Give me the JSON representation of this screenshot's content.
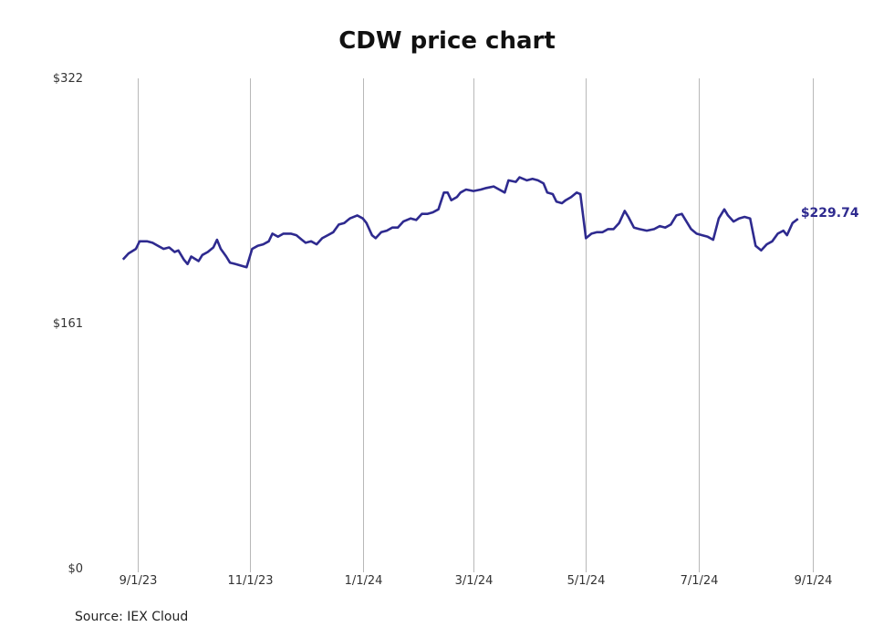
{
  "chart_data": {
    "type": "line",
    "title": "CDW price chart",
    "source": "Source: IEX Cloud",
    "ylim": [
      0,
      322
    ],
    "yticks": [
      "$322",
      "$161",
      "$0"
    ],
    "ytick_values": [
      322,
      161,
      0
    ],
    "xticks": [
      "9/1/23",
      "11/1/23",
      "1/1/24",
      "3/1/24",
      "5/1/24",
      "7/1/24",
      "9/1/24"
    ],
    "xtick_dates": [
      "2023-09-01",
      "2023-11-01",
      "2024-01-01",
      "2024-03-01",
      "2024-05-01",
      "2024-07-01",
      "2024-09-01"
    ],
    "grid": "vertical",
    "line_color": "#2e2a8f",
    "end_label": "$229.74",
    "series": [
      {
        "values": [
          [
            "2023-08-24",
            203
          ],
          [
            "2023-08-27",
            207
          ],
          [
            "2023-08-31",
            210
          ],
          [
            "2023-09-02",
            215
          ],
          [
            "2023-09-06",
            215
          ],
          [
            "2023-09-09",
            214
          ],
          [
            "2023-09-12",
            212
          ],
          [
            "2023-09-15",
            210
          ],
          [
            "2023-09-18",
            211
          ],
          [
            "2023-09-21",
            208
          ],
          [
            "2023-09-23",
            209
          ],
          [
            "2023-09-26",
            203
          ],
          [
            "2023-09-28",
            200
          ],
          [
            "2023-09-30",
            205
          ],
          [
            "2023-10-04",
            202
          ],
          [
            "2023-10-06",
            206
          ],
          [
            "2023-10-09",
            208
          ],
          [
            "2023-10-12",
            211
          ],
          [
            "2023-10-14",
            216
          ],
          [
            "2023-10-16",
            210
          ],
          [
            "2023-10-19",
            205
          ],
          [
            "2023-10-21",
            201
          ],
          [
            "2023-10-24",
            200
          ],
          [
            "2023-10-27",
            199
          ],
          [
            "2023-10-30",
            198
          ],
          [
            "2023-11-02",
            210
          ],
          [
            "2023-11-05",
            212
          ],
          [
            "2023-11-08",
            213
          ],
          [
            "2023-11-11",
            215
          ],
          [
            "2023-11-13",
            220
          ],
          [
            "2023-11-16",
            218
          ],
          [
            "2023-11-19",
            220
          ],
          [
            "2023-11-23",
            220
          ],
          [
            "2023-11-26",
            219
          ],
          [
            "2023-11-29",
            216
          ],
          [
            "2023-12-01",
            214
          ],
          [
            "2023-12-04",
            215
          ],
          [
            "2023-12-07",
            213
          ],
          [
            "2023-12-10",
            217
          ],
          [
            "2023-12-13",
            219
          ],
          [
            "2023-12-16",
            221
          ],
          [
            "2023-12-19",
            226
          ],
          [
            "2023-12-22",
            227
          ],
          [
            "2023-12-25",
            230
          ],
          [
            "2023-12-29",
            232
          ],
          [
            "2024-01-01",
            230
          ],
          [
            "2024-01-03",
            227
          ],
          [
            "2024-01-06",
            219
          ],
          [
            "2024-01-08",
            217
          ],
          [
            "2024-01-11",
            221
          ],
          [
            "2024-01-14",
            222
          ],
          [
            "2024-01-17",
            224
          ],
          [
            "2024-01-20",
            224
          ],
          [
            "2024-01-23",
            228
          ],
          [
            "2024-01-27",
            230
          ],
          [
            "2024-01-30",
            229
          ],
          [
            "2024-02-02",
            233
          ],
          [
            "2024-02-05",
            233
          ],
          [
            "2024-02-08",
            234
          ],
          [
            "2024-02-11",
            236
          ],
          [
            "2024-02-14",
            247
          ],
          [
            "2024-02-16",
            247
          ],
          [
            "2024-02-18",
            242
          ],
          [
            "2024-02-21",
            244
          ],
          [
            "2024-02-23",
            247
          ],
          [
            "2024-02-26",
            249
          ],
          [
            "2024-03-01",
            248
          ],
          [
            "2024-03-05",
            249
          ],
          [
            "2024-03-08",
            250
          ],
          [
            "2024-03-12",
            251
          ],
          [
            "2024-03-15",
            249
          ],
          [
            "2024-03-18",
            247
          ],
          [
            "2024-03-20",
            255
          ],
          [
            "2024-03-24",
            254
          ],
          [
            "2024-03-26",
            257
          ],
          [
            "2024-03-30",
            255
          ],
          [
            "2024-04-02",
            256
          ],
          [
            "2024-04-05",
            255
          ],
          [
            "2024-04-08",
            253
          ],
          [
            "2024-04-10",
            247
          ],
          [
            "2024-04-13",
            246
          ],
          [
            "2024-04-15",
            241
          ],
          [
            "2024-04-18",
            240
          ],
          [
            "2024-04-20",
            242
          ],
          [
            "2024-04-23",
            244
          ],
          [
            "2024-04-26",
            247
          ],
          [
            "2024-04-28",
            246
          ],
          [
            "2024-05-01",
            217
          ],
          [
            "2024-05-04",
            220
          ],
          [
            "2024-05-07",
            221
          ],
          [
            "2024-05-10",
            221
          ],
          [
            "2024-05-13",
            223
          ],
          [
            "2024-05-16",
            223
          ],
          [
            "2024-05-19",
            227
          ],
          [
            "2024-05-22",
            235
          ],
          [
            "2024-05-24",
            231
          ],
          [
            "2024-05-27",
            224
          ],
          [
            "2024-05-30",
            223
          ],
          [
            "2024-06-03",
            222
          ],
          [
            "2024-06-07",
            223
          ],
          [
            "2024-06-10",
            225
          ],
          [
            "2024-06-13",
            224
          ],
          [
            "2024-06-16",
            226
          ],
          [
            "2024-06-19",
            232
          ],
          [
            "2024-06-22",
            233
          ],
          [
            "2024-06-24",
            229
          ],
          [
            "2024-06-27",
            223
          ],
          [
            "2024-06-30",
            220
          ],
          [
            "2024-07-03",
            219
          ],
          [
            "2024-07-06",
            218
          ],
          [
            "2024-07-09",
            216
          ],
          [
            "2024-07-12",
            230
          ],
          [
            "2024-07-15",
            236
          ],
          [
            "2024-07-17",
            232
          ],
          [
            "2024-07-20",
            228
          ],
          [
            "2024-07-23",
            230
          ],
          [
            "2024-07-26",
            231
          ],
          [
            "2024-07-29",
            230
          ],
          [
            "2024-08-01",
            212
          ],
          [
            "2024-08-04",
            209
          ],
          [
            "2024-08-07",
            213
          ],
          [
            "2024-08-10",
            215
          ],
          [
            "2024-08-13",
            220
          ],
          [
            "2024-08-16",
            222
          ],
          [
            "2024-08-18",
            219
          ],
          [
            "2024-08-21",
            227
          ],
          [
            "2024-08-24",
            229.74
          ]
        ]
      }
    ]
  },
  "colors": {
    "line": "#2e2a8f",
    "grid": "#b8b8b8",
    "text": "#333333"
  }
}
